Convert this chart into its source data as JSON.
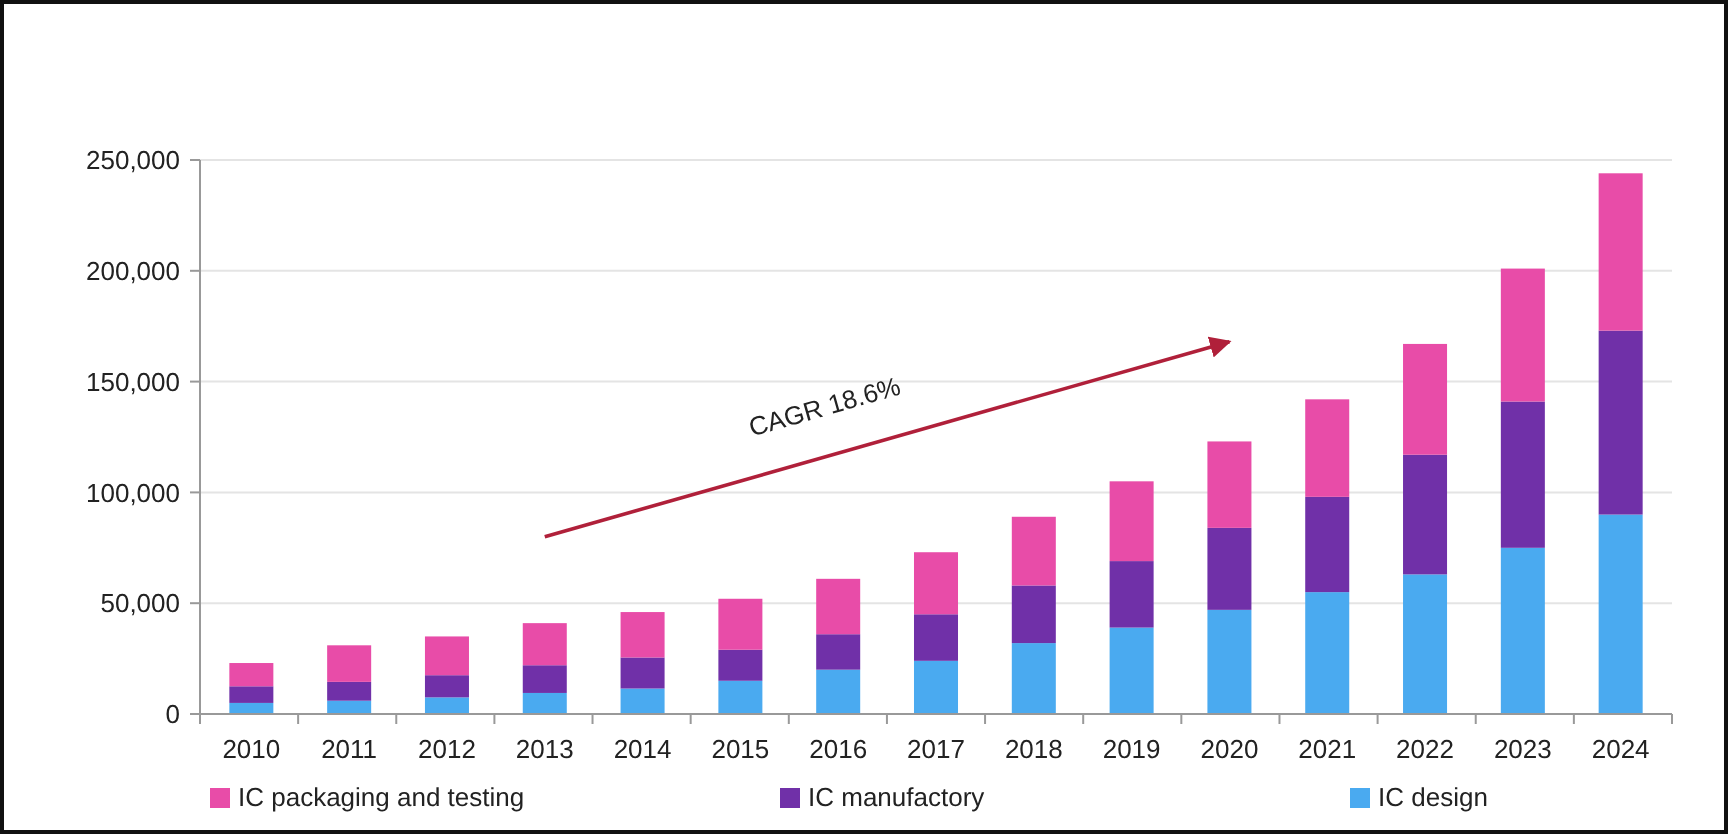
{
  "chart_data": {
    "type": "bar",
    "stacked": true,
    "categories": [
      "2010",
      "2011",
      "2012",
      "2013",
      "2014",
      "2015",
      "2016",
      "2017",
      "2018",
      "2019",
      "2020",
      "2021",
      "2022",
      "2023",
      "2024"
    ],
    "series": [
      {
        "name": "IC design",
        "color": "#4aaaf0",
        "values": [
          5000,
          6000,
          7500,
          9500,
          11500,
          15000,
          20000,
          24000,
          32000,
          39000,
          47000,
          55000,
          63000,
          75000,
          90000
        ]
      },
      {
        "name": "IC manufactory",
        "color": "#7030a8",
        "values": [
          7500,
          8500,
          10000,
          12500,
          14000,
          14000,
          16000,
          21000,
          26000,
          30000,
          37000,
          43000,
          54000,
          66000,
          83000
        ]
      },
      {
        "name": "IC packaging and testing",
        "color": "#e84ca8",
        "values": [
          10500,
          16500,
          17500,
          19000,
          20500,
          23000,
          25000,
          28000,
          31000,
          36000,
          39000,
          44000,
          50000,
          60000,
          71000
        ]
      }
    ],
    "ylim": [
      0,
      250000
    ],
    "yticks": [
      {
        "value": 0,
        "label": "0"
      },
      {
        "value": 50000,
        "label": "50,000"
      },
      {
        "value": 100000,
        "label": "100,000"
      },
      {
        "value": 150000,
        "label": "150,000"
      },
      {
        "value": 200000,
        "label": "200,000"
      },
      {
        "value": 250000,
        "label": "250,000"
      }
    ],
    "grid": "y",
    "legend": "bottom",
    "annotations": [
      "CAGR 18.6%"
    ]
  }
}
